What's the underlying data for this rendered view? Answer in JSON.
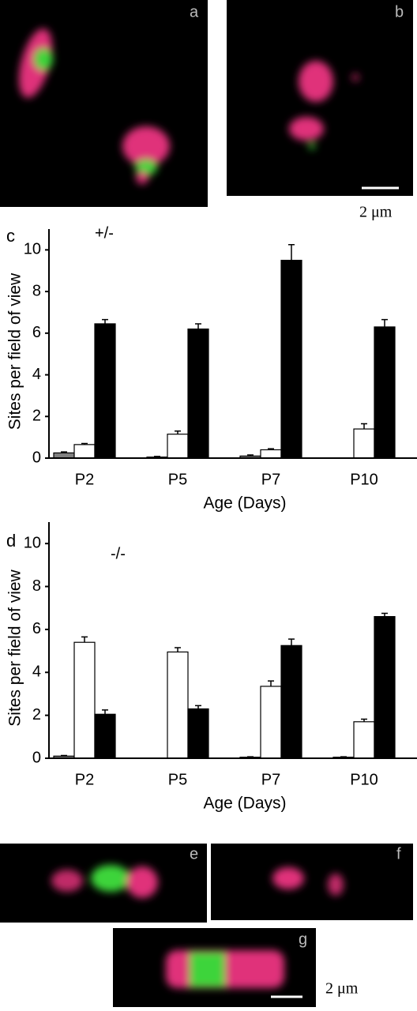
{
  "images": [
    {
      "label": "a"
    },
    {
      "label": "b"
    },
    {
      "label": "e"
    },
    {
      "label": "f"
    },
    {
      "label": "g"
    }
  ],
  "scale_bars": [
    "2 μm",
    "2 μm"
  ],
  "chart_data": [
    {
      "type": "bar",
      "panel": "c",
      "annotation": "+/-",
      "y_label": "Sites per field of view",
      "x_label": "Age (Days)",
      "categories": [
        "P2",
        "P5",
        "P7",
        "P10"
      ],
      "series": [
        {
          "color": "#808080",
          "values": [
            0.25,
            0.05,
            0.1,
            0
          ],
          "errors": [
            0.05,
            0.03,
            0.05,
            0
          ]
        },
        {
          "color": "#ffffff",
          "values": [
            0.65,
            1.15,
            0.4,
            1.4
          ],
          "errors": [
            0.05,
            0.15,
            0.05,
            0.25
          ]
        },
        {
          "color": "#000000",
          "values": [
            6.45,
            6.2,
            9.5,
            6.3
          ],
          "errors": [
            0.2,
            0.25,
            0.75,
            0.35
          ]
        }
      ],
      "ylim": [
        0,
        11
      ],
      "yticks": [
        0,
        2,
        4,
        6,
        8,
        10
      ],
      "grid": false
    },
    {
      "type": "bar",
      "panel": "d",
      "annotation": "-/-",
      "y_label": "Sites per field of view",
      "x_label": "Age (Days)",
      "categories": [
        "P2",
        "P5",
        "P7",
        "P10"
      ],
      "series": [
        {
          "color": "#808080",
          "values": [
            0.1,
            0,
            0.05,
            0.05
          ],
          "errors": [
            0.03,
            0,
            0.02,
            0.02
          ]
        },
        {
          "color": "#ffffff",
          "values": [
            5.4,
            4.95,
            3.35,
            1.7
          ],
          "errors": [
            0.25,
            0.2,
            0.25,
            0.12
          ]
        },
        {
          "color": "#000000",
          "values": [
            2.05,
            2.3,
            5.25,
            6.6
          ],
          "errors": [
            0.2,
            0.15,
            0.3,
            0.15
          ]
        }
      ],
      "ylim": [
        0,
        11
      ],
      "yticks": [
        0,
        2,
        4,
        6,
        8,
        10
      ],
      "grid": false
    }
  ]
}
